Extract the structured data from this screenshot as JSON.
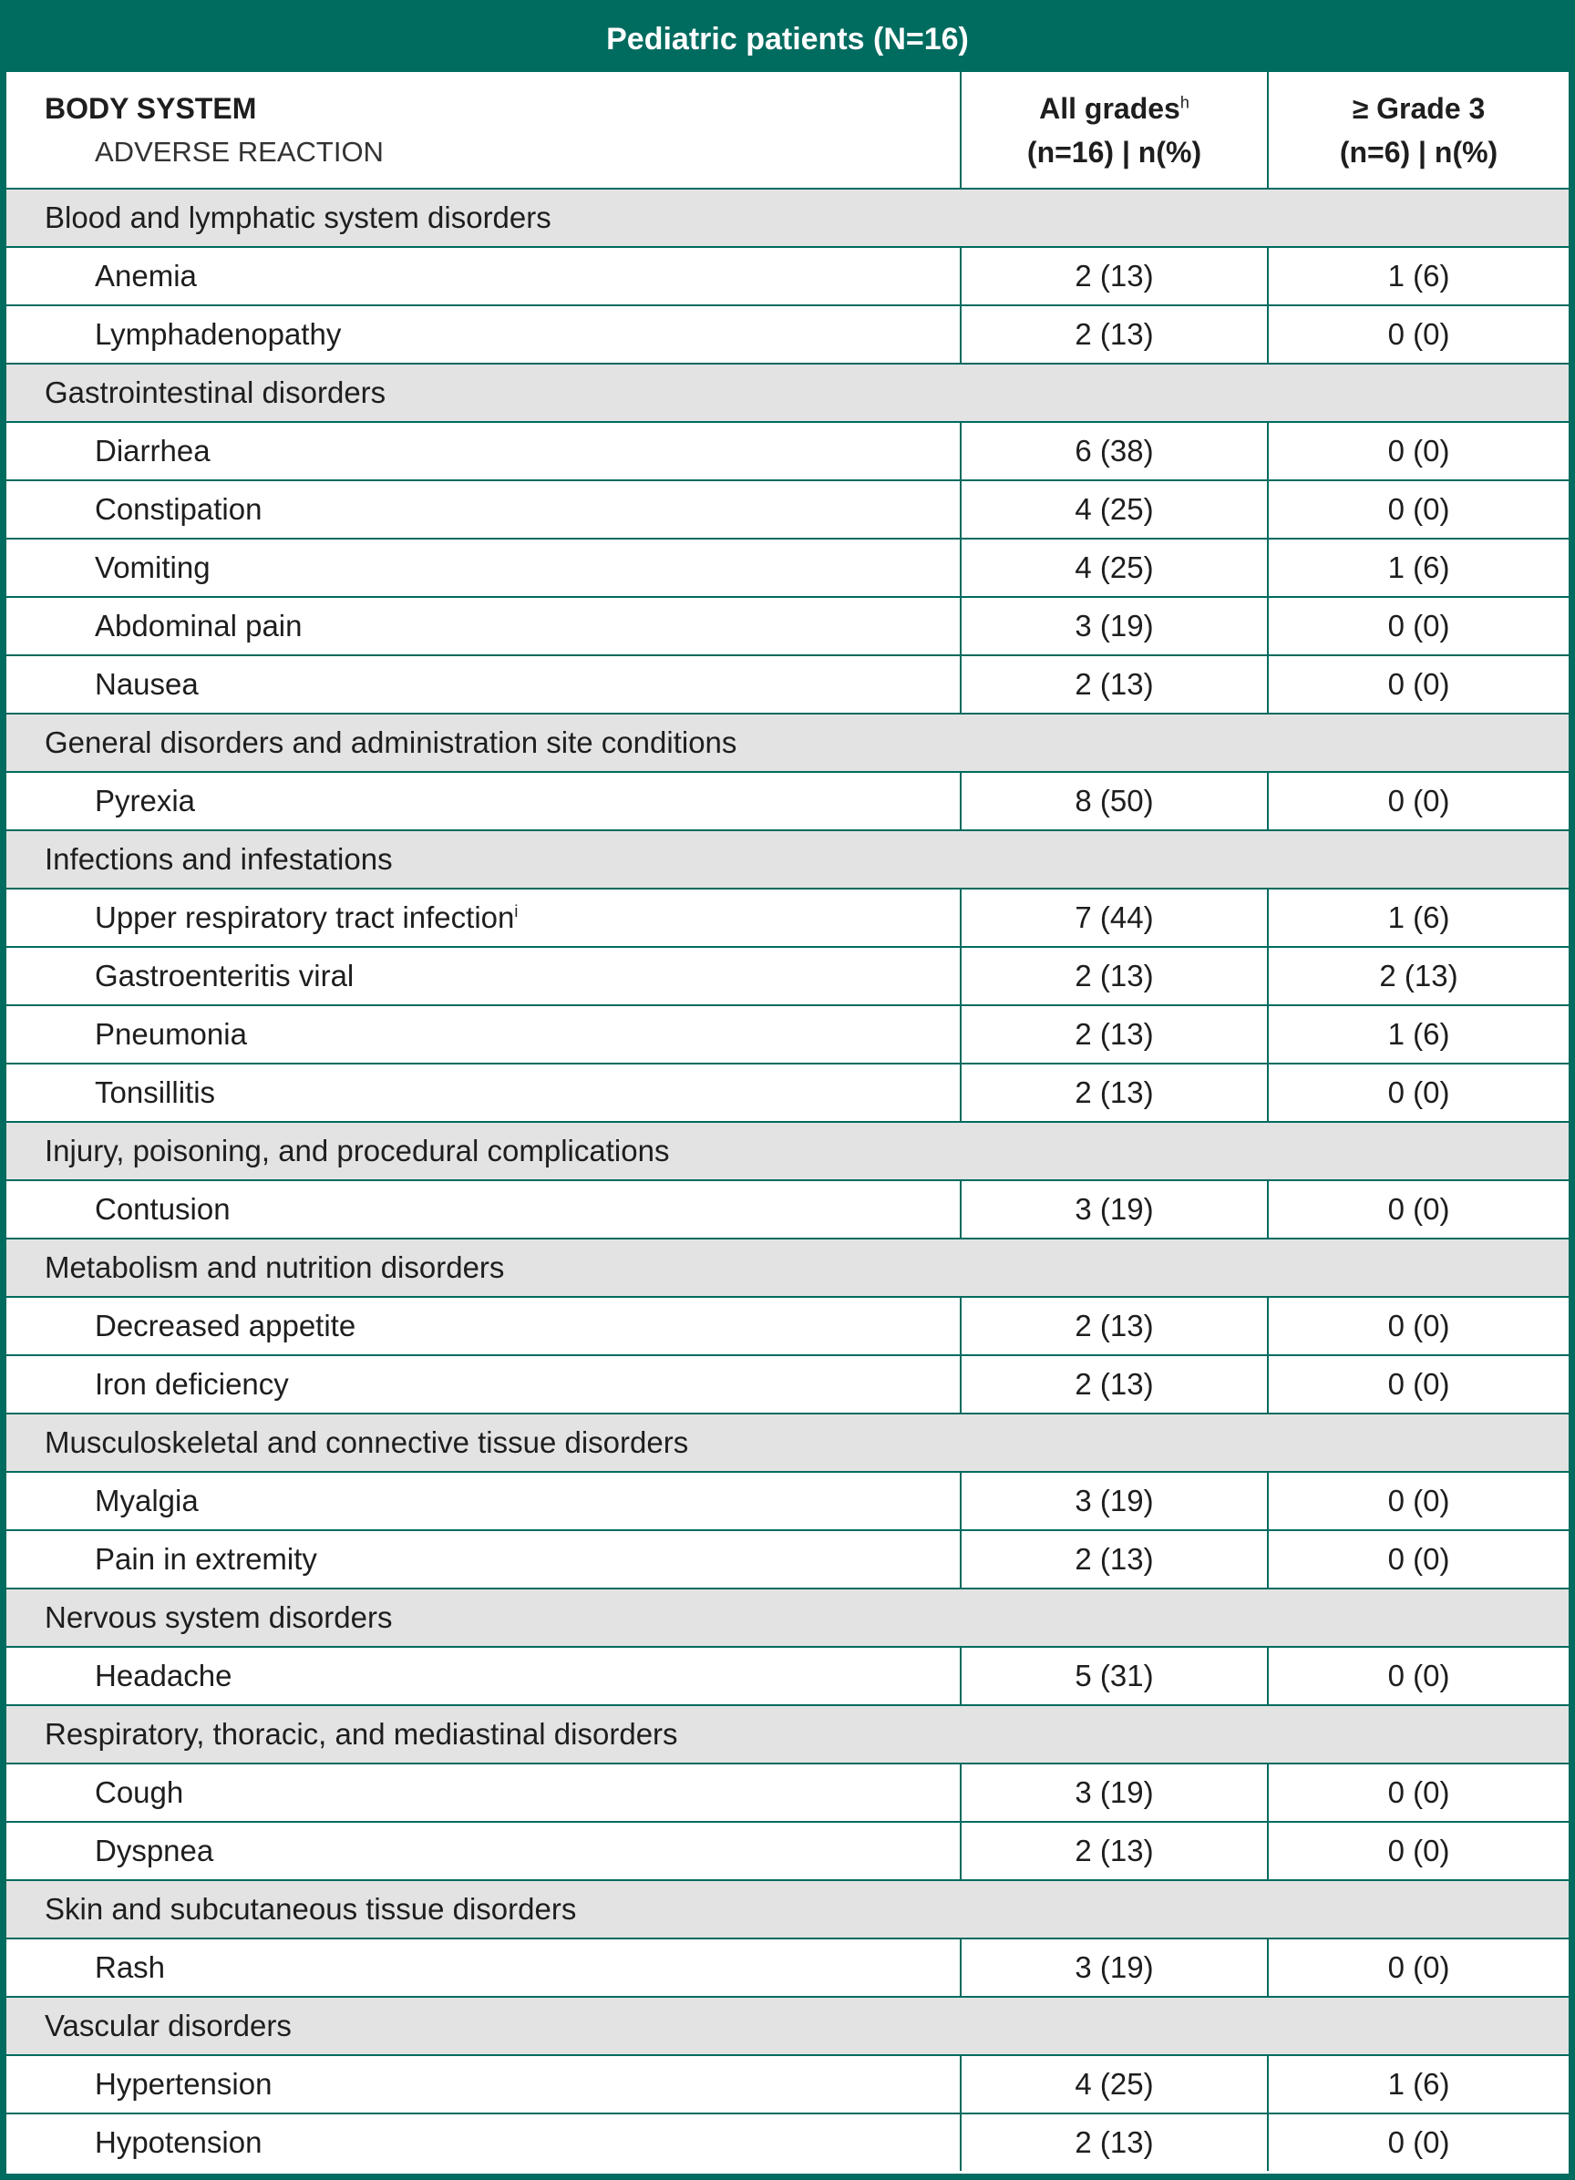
{
  "title": "Pediatric patients (N=16)",
  "header": {
    "col1_line1": "BODY SYSTEM",
    "col1_line2": "ADVERSE REACTION",
    "col2_line1": "All grades",
    "col2_sup": "h",
    "col2_line2": "(n=16) | n(%)",
    "col3_line1": "≥ Grade 3",
    "col3_line2": "(n=6) | n(%)"
  },
  "groups": [
    {
      "category": "Blood and lymphatic system disorders",
      "rows": [
        {
          "name": "Anemia",
          "all": "2 (13)",
          "g3": "1 (6)"
        },
        {
          "name": "Lymphadenopathy",
          "all": "2 (13)",
          "g3": "0 (0)"
        }
      ]
    },
    {
      "category": "Gastrointestinal disorders",
      "rows": [
        {
          "name": "Diarrhea",
          "all": "6 (38)",
          "g3": "0 (0)"
        },
        {
          "name": "Constipation",
          "all": "4 (25)",
          "g3": "0 (0)"
        },
        {
          "name": "Vomiting",
          "all": "4 (25)",
          "g3": "1 (6)"
        },
        {
          "name": "Abdominal pain",
          "all": "3 (19)",
          "g3": "0 (0)"
        },
        {
          "name": "Nausea",
          "all": "2 (13)",
          "g3": "0 (0)"
        }
      ]
    },
    {
      "category": "General disorders and administration site conditions",
      "rows": [
        {
          "name": "Pyrexia",
          "all": "8 (50)",
          "g3": "0 (0)"
        }
      ]
    },
    {
      "category": "Infections and infestations",
      "rows": [
        {
          "name": "Upper respiratory tract infection",
          "sup": "i",
          "all": "7 (44)",
          "g3": "1 (6)"
        },
        {
          "name": "Gastroenteritis viral",
          "all": "2 (13)",
          "g3": "2 (13)"
        },
        {
          "name": "Pneumonia",
          "all": "2 (13)",
          "g3": "1 (6)"
        },
        {
          "name": "Tonsillitis",
          "all": "2 (13)",
          "g3": "0 (0)"
        }
      ]
    },
    {
      "category": "Injury, poisoning, and procedural complications",
      "rows": [
        {
          "name": "Contusion",
          "all": "3 (19)",
          "g3": "0 (0)"
        }
      ]
    },
    {
      "category": "Metabolism and nutrition disorders",
      "rows": [
        {
          "name": "Decreased appetite",
          "all": "2 (13)",
          "g3": "0 (0)"
        },
        {
          "name": "Iron deficiency",
          "all": "2 (13)",
          "g3": "0 (0)"
        }
      ]
    },
    {
      "category": "Musculoskeletal and connective tissue disorders",
      "rows": [
        {
          "name": "Myalgia",
          "all": "3 (19)",
          "g3": "0 (0)"
        },
        {
          "name": "Pain in extremity",
          "all": "2 (13)",
          "g3": "0 (0)"
        }
      ]
    },
    {
      "category": "Nervous system disorders",
      "rows": [
        {
          "name": "Headache",
          "all": "5 (31)",
          "g3": "0 (0)"
        }
      ]
    },
    {
      "category": "Respiratory, thoracic, and mediastinal disorders",
      "rows": [
        {
          "name": "Cough",
          "all": "3 (19)",
          "g3": "0 (0)"
        },
        {
          "name": "Dyspnea",
          "all": "2 (13)",
          "g3": "0 (0)"
        }
      ]
    },
    {
      "category": "Skin and subcutaneous tissue disorders",
      "rows": [
        {
          "name": "Rash",
          "all": "3 (19)",
          "g3": "0 (0)"
        }
      ]
    },
    {
      "category": "Vascular disorders",
      "rows": [
        {
          "name": "Hypertension",
          "all": "4 (25)",
          "g3": "1 (6)"
        },
        {
          "name": "Hypotension",
          "all": "2 (13)",
          "g3": "0 (0)"
        }
      ]
    }
  ]
}
